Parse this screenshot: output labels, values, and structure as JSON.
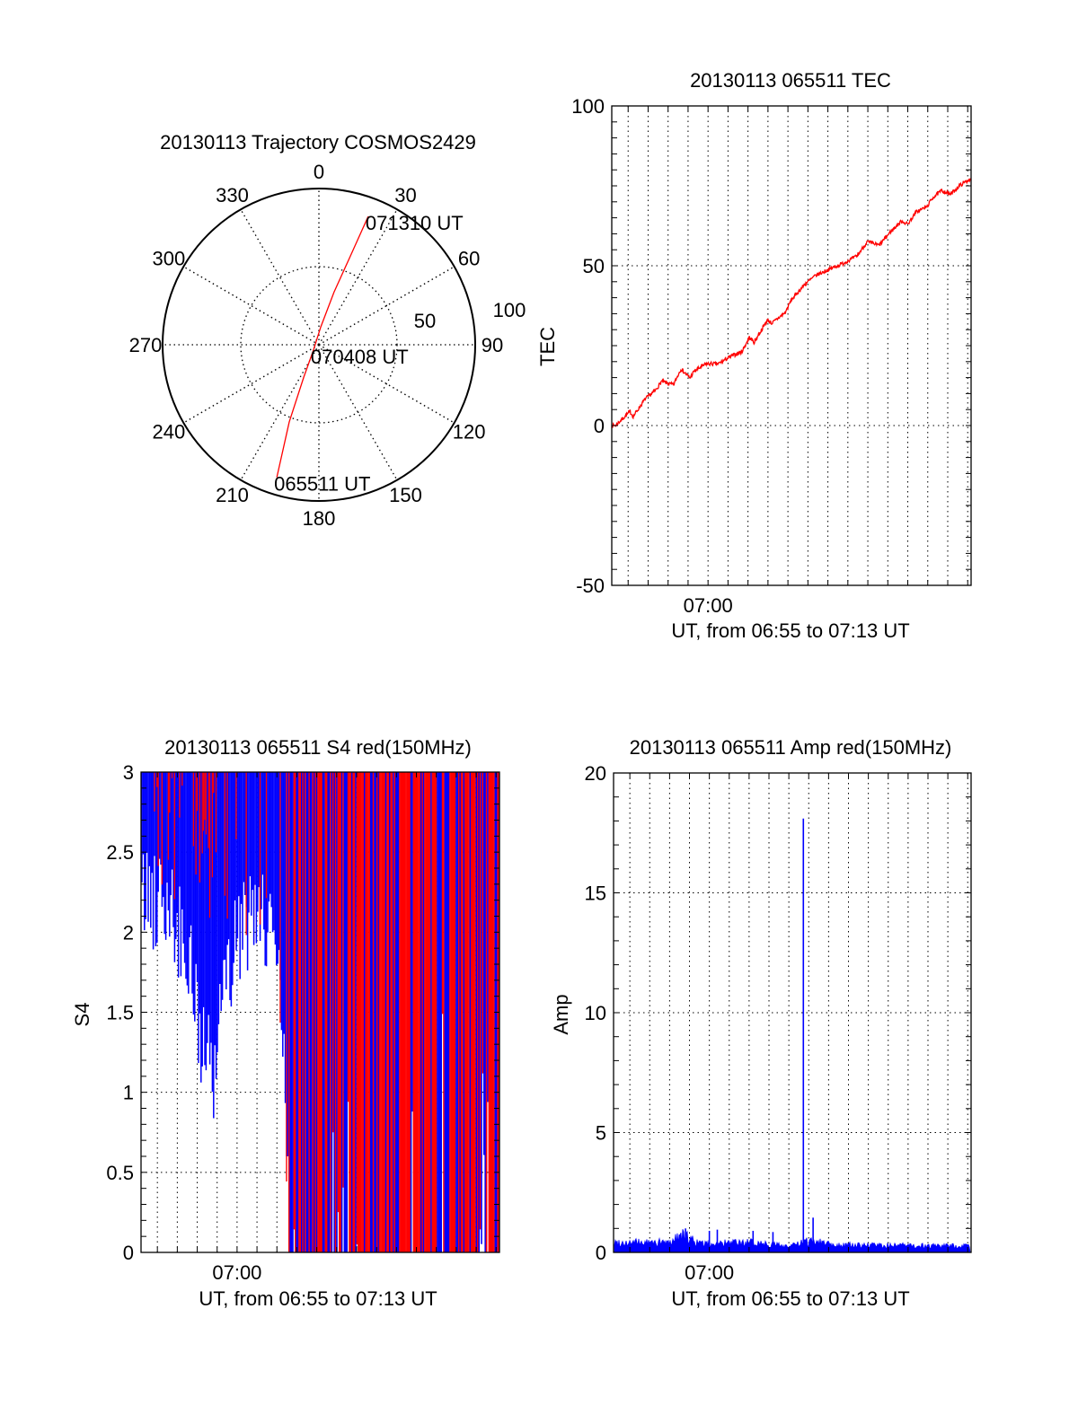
{
  "chart_data": [
    {
      "type": "polar",
      "title": "20130113 Trajectory COSMOS2429",
      "angle_labels": [
        "0",
        "30",
        "60",
        "90",
        "120",
        "150",
        "180",
        "210",
        "240",
        "270",
        "300",
        "330"
      ],
      "radial_labels": [
        "50",
        "100"
      ],
      "radial_range": [
        0,
        100
      ],
      "series_color": "#ff0000",
      "trajectory": [
        {
          "az": 197.6,
          "r": 89
        },
        {
          "az": 201,
          "r": 53
        },
        {
          "az": 205,
          "r": 23
        },
        {
          "az": 225,
          "r": 5
        },
        {
          "az": 6,
          "r": 11.5
        },
        {
          "az": 16,
          "r": 35
        },
        {
          "az": 19.5,
          "r": 60
        },
        {
          "az": 21,
          "r": 88
        }
      ],
      "annotations": [
        {
          "text": "065511 UT",
          "point_index": 0
        },
        {
          "text": "070408 UT",
          "point_index": 3
        },
        {
          "text": "071310 UT",
          "point_index": 7
        }
      ]
    },
    {
      "type": "line",
      "title": "20130113 065511 TEC",
      "ylabel": "TEC",
      "xlabel": "UT, from 06:55 to 07:13 UT",
      "x_unit": "minutes after 06:55 UT",
      "xlim": [
        0.18,
        18.17
      ],
      "ylim": [
        -50,
        100
      ],
      "yticks": [
        "-50",
        "0",
        "50",
        "100"
      ],
      "xticks": [
        {
          "t": 5,
          "label": "07:00"
        }
      ],
      "grid": true,
      "series_color": "#ff0000",
      "points": [
        [
          0.2,
          0
        ],
        [
          0.36,
          0
        ],
        [
          1.1,
          4.4
        ],
        [
          1.25,
          2.8
        ],
        [
          1.85,
          8.3
        ],
        [
          2.37,
          11
        ],
        [
          2.67,
          13.8
        ],
        [
          3.27,
          12.7
        ],
        [
          3.64,
          17.7
        ],
        [
          4.09,
          14.9
        ],
        [
          4.31,
          17
        ],
        [
          4.91,
          19.3
        ],
        [
          5.51,
          19.3
        ],
        [
          6.1,
          21.5
        ],
        [
          6.7,
          23.2
        ],
        [
          7.07,
          27.6
        ],
        [
          7.3,
          26
        ],
        [
          7.97,
          33
        ],
        [
          8.2,
          32
        ],
        [
          8.87,
          35.4
        ],
        [
          9.16,
          39.2
        ],
        [
          9.84,
          44.2
        ],
        [
          10.4,
          47
        ],
        [
          11.18,
          49.2
        ],
        [
          11.78,
          50.8
        ],
        [
          12.45,
          53
        ],
        [
          12.97,
          57.5
        ],
        [
          13.57,
          56.4
        ],
        [
          14.16,
          60.8
        ],
        [
          14.69,
          64
        ],
        [
          14.99,
          63
        ],
        [
          15.43,
          66.9
        ],
        [
          15.96,
          68.5
        ],
        [
          16.25,
          71.3
        ],
        [
          16.7,
          73.5
        ],
        [
          17.15,
          72.4
        ],
        [
          17.6,
          75.1
        ],
        [
          18.15,
          77.3
        ]
      ]
    },
    {
      "type": "bar",
      "title": "20130113 065511 S4 red(150MHz)",
      "ylabel": "S4",
      "xlabel": "UT, from 06:55 to 07:13 UT",
      "x_unit": "minutes after 06:55 UT",
      "xlim": [
        0.18,
        18.17
      ],
      "ylim": [
        0,
        3
      ],
      "yticks": [
        "0",
        "0.5",
        "1",
        "1.5",
        "2",
        "2.5",
        "3"
      ],
      "xticks": [
        {
          "t": 5,
          "label": "07:00"
        }
      ],
      "grid": true,
      "colors": {
        "primary": "#0000ff",
        "secondary": "#ff0000"
      },
      "profile": [
        {
          "t": 0.18,
          "blue_floor": 2.1,
          "red_floor": 2.6,
          "red_share": 0.25
        },
        {
          "t": 1.0,
          "blue_floor": 2.1,
          "red_floor": 2.6,
          "red_share": 0.2
        },
        {
          "t": 2.0,
          "blue_floor": 1.9,
          "red_floor": 2.5,
          "red_share": 0.25
        },
        {
          "t": 2.8,
          "blue_floor": 1.5,
          "red_floor": 2.3,
          "red_share": 0.5
        },
        {
          "t": 3.2,
          "blue_floor": 1.15,
          "red_floor": 2.3,
          "red_share": 0.5
        },
        {
          "t": 3.8,
          "blue_floor": 1.0,
          "red_floor": 2.4,
          "red_share": 0.4
        },
        {
          "t": 4.3,
          "blue_floor": 1.6,
          "red_floor": 2.3,
          "red_share": 0.3
        },
        {
          "t": 5.0,
          "blue_floor": 1.8,
          "red_floor": 2.2,
          "red_share": 0.2
        },
        {
          "t": 6.0,
          "blue_floor": 1.9,
          "red_floor": 2.3,
          "red_share": 0.15
        },
        {
          "t": 7.0,
          "blue_floor": 1.9,
          "red_floor": 2.3,
          "red_share": 0.15
        },
        {
          "t": 7.4,
          "blue_floor": 1.2,
          "red_floor": 1.0,
          "red_share": 0.3
        },
        {
          "t": 7.6,
          "blue_floor": 0.0,
          "red_floor": 0.0,
          "red_share": 0.5
        },
        {
          "t": 9.5,
          "blue_floor": 0.0,
          "red_floor": 0.0,
          "red_share": 0.6
        },
        {
          "t": 18.17,
          "blue_floor": 0.0,
          "red_floor": 0.0,
          "red_share": 0.6
        }
      ]
    },
    {
      "type": "bar",
      "title": "20130113 065511 Amp red(150MHz)",
      "ylabel": "Amp",
      "xlabel": "UT, from 06:55 to 07:13 UT",
      "x_unit": "minutes after 06:55 UT",
      "xlim": [
        0.18,
        18.17
      ],
      "ylim": [
        0,
        20
      ],
      "yticks": [
        "0",
        "5",
        "10",
        "15",
        "20"
      ],
      "xticks": [
        {
          "t": 5,
          "label": "07:00"
        }
      ],
      "grid": true,
      "series_color": "#0000ff",
      "baseline": [
        {
          "t": 0.18,
          "level": 0.4
        },
        {
          "t": 3.0,
          "level": 0.4
        },
        {
          "t": 3.5,
          "level": 0.7
        },
        {
          "t": 4.0,
          "level": 0.6
        },
        {
          "t": 4.5,
          "level": 0.35
        },
        {
          "t": 7.5,
          "level": 0.4
        },
        {
          "t": 9.0,
          "level": 0.25
        },
        {
          "t": 10.3,
          "level": 0.5
        },
        {
          "t": 11.5,
          "level": 0.3
        },
        {
          "t": 18.17,
          "level": 0.25
        }
      ],
      "spikes": [
        {
          "t": 3.8,
          "value": 1.0
        },
        {
          "t": 5.0,
          "value": 0.9
        },
        {
          "t": 5.4,
          "value": 0.95
        },
        {
          "t": 7.2,
          "value": 0.9
        },
        {
          "t": 8.2,
          "value": 0.85
        },
        {
          "t": 9.73,
          "value": 18.1
        },
        {
          "t": 10.22,
          "value": 1.45
        }
      ]
    }
  ]
}
